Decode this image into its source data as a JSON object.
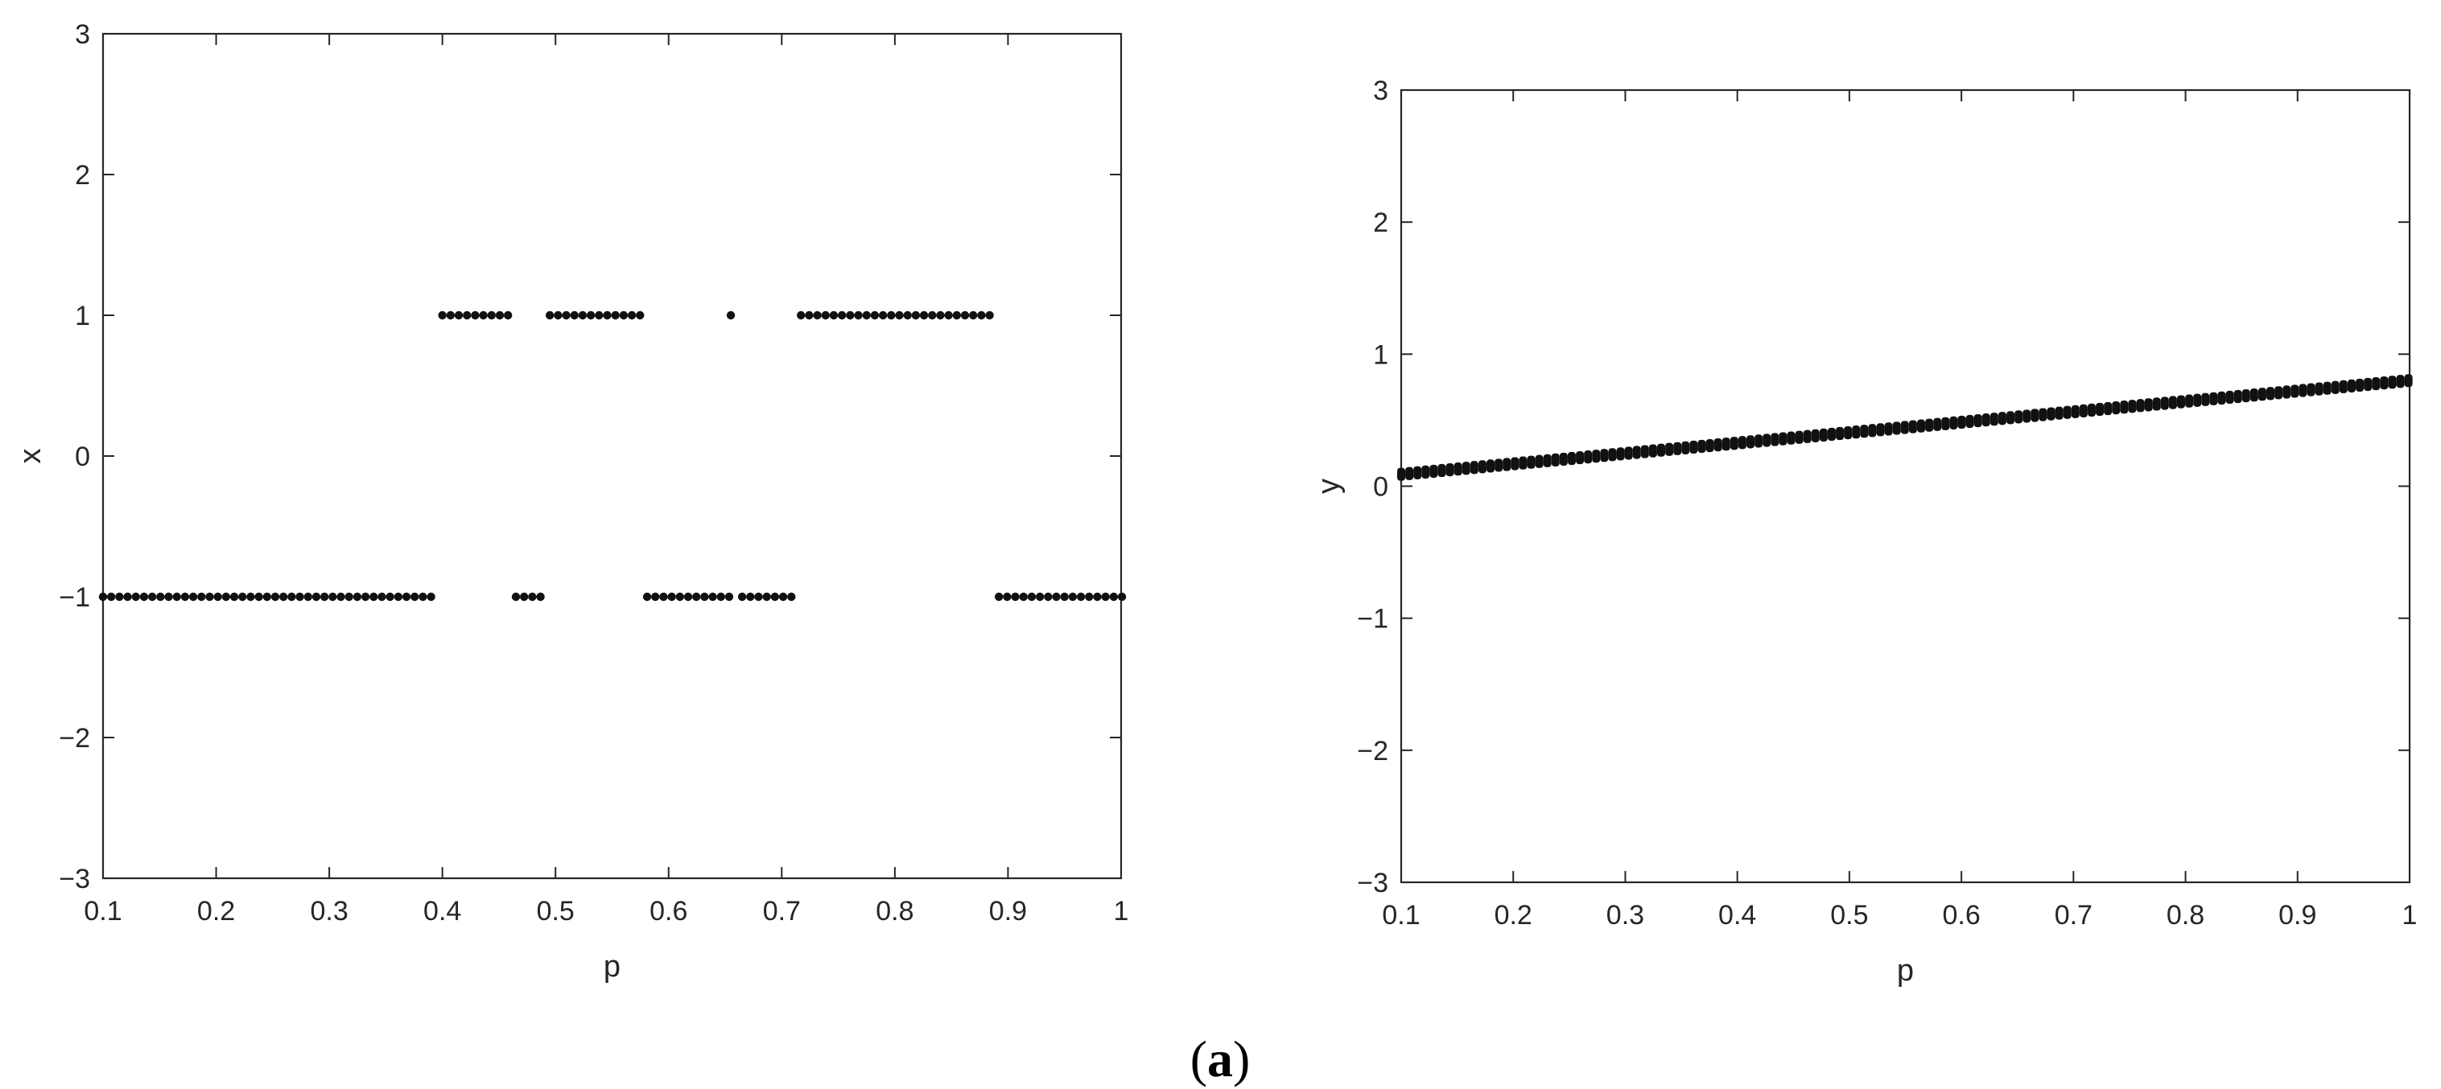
{
  "chart_data": [
    {
      "type": "scatter",
      "title": "",
      "xlabel": "p",
      "ylabel": "x",
      "xlim": [
        0.1,
        1
      ],
      "ylim": [
        -3,
        3
      ],
      "xticks": [
        "0.1",
        "0.2",
        "0.3",
        "0.4",
        "0.5",
        "0.6",
        "0.7",
        "0.8",
        "0.9",
        "1"
      ],
      "yticks": [
        "-3",
        "-2",
        "-1",
        "0",
        "1",
        "2",
        "3"
      ],
      "grid": false,
      "marker_color": "#111111",
      "point_groups": [
        {
          "y": -1,
          "x_from": 0.1,
          "x_to": 0.39,
          "step": 0.00725
        },
        {
          "y": 1,
          "x_from": 0.4,
          "x_to": 0.455,
          "step": 0.00725
        },
        {
          "y": -1,
          "x_from": 0.465,
          "x_to": 0.485,
          "step": 0.00725
        },
        {
          "y": 1,
          "x_from": 0.495,
          "x_to": 0.573,
          "step": 0.00725
        },
        {
          "y": -1,
          "x_from": 0.581,
          "x_to": 0.65,
          "step": 0.00725
        },
        {
          "y": 1,
          "x_from": 0.655,
          "x_to": 0.655,
          "step": 0.00725
        },
        {
          "y": -1,
          "x_from": 0.665,
          "x_to": 0.708,
          "step": 0.00725
        },
        {
          "y": 1,
          "x_from": 0.717,
          "x_to": 0.882,
          "step": 0.00725
        },
        {
          "y": -1,
          "x_from": 0.892,
          "x_to": 1.0,
          "step": 0.00725
        }
      ]
    },
    {
      "type": "scatter",
      "title": "",
      "xlabel": "p",
      "ylabel": "y",
      "xlim": [
        0.1,
        1
      ],
      "ylim": [
        -3,
        3
      ],
      "xticks": [
        "0.1",
        "0.2",
        "0.3",
        "0.4",
        "0.5",
        "0.6",
        "0.7",
        "0.8",
        "0.9",
        "1"
      ],
      "yticks": [
        "-3",
        "-2",
        "-1",
        "0",
        "1",
        "2",
        "3"
      ],
      "grid": false,
      "marker_color": "#111111",
      "point_groups": [
        {
          "x_from": 0.1,
          "x_to": 1.0,
          "step": 0.00725,
          "y_at_start": 0.09,
          "y_at_end": 0.8,
          "y_spread": 0.05
        }
      ]
    }
  ],
  "caption": {
    "open": "(",
    "letter": "a",
    "close": ")"
  }
}
